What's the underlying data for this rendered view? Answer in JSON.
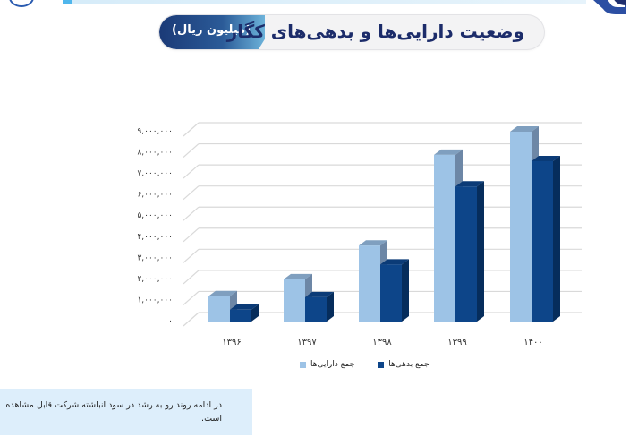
{
  "header": {
    "title": "وضعیت دارایی‌ها و بدهی‌های کگاز",
    "unit": "(میلیون ریال)"
  },
  "colors": {
    "assets": "#9dc3e6",
    "assets_top": "#7f9fbf",
    "assets_side": "#6d87a6",
    "liabilities": "#0d4589",
    "liabilities_top": "#0b3b77",
    "liabilities_side": "#062d5c",
    "title_text": "#1c2c6a",
    "note_bg": "#ddeefb"
  },
  "chart_data": {
    "type": "bar",
    "title": "وضعیت دارایی‌ها و بدهی‌های کگاز (میلیون ریال)",
    "xlabel": "",
    "ylabel": "",
    "categories": [
      "۱۳۹۶",
      "۱۳۹۷",
      "۱۳۹۸",
      "۱۳۹۹",
      "۱۴۰۰"
    ],
    "series": [
      {
        "name": "جمع دارایی‌ها",
        "values": [
          1200000,
          2000000,
          3600000,
          7900000,
          9000000
        ]
      },
      {
        "name": "جمع بدهی‌ها",
        "values": [
          560000,
          1150000,
          2700000,
          6400000,
          7600000
        ]
      }
    ],
    "yticks": [
      "۰",
      "۱,۰۰۰,۰۰۰",
      "۲,۰۰۰,۰۰۰",
      "۳,۰۰۰,۰۰۰",
      "۴,۰۰۰,۰۰۰",
      "۵,۰۰۰,۰۰۰",
      "۶,۰۰۰,۰۰۰",
      "۷,۰۰۰,۰۰۰",
      "۸,۰۰۰,۰۰۰",
      "۹,۰۰۰,۰۰۰"
    ],
    "ylim": [
      0,
      9000000
    ],
    "grid": true,
    "style": "3d-clustered-column",
    "legend_position": "bottom"
  },
  "legend": {
    "assets": "جمع دارایی‌ها",
    "liabilities": "جمع بدهی‌ها"
  },
  "note": {
    "text": "در ادامه روند رو به رشد در سود انباشته شرکت قابل مشاهده است."
  }
}
